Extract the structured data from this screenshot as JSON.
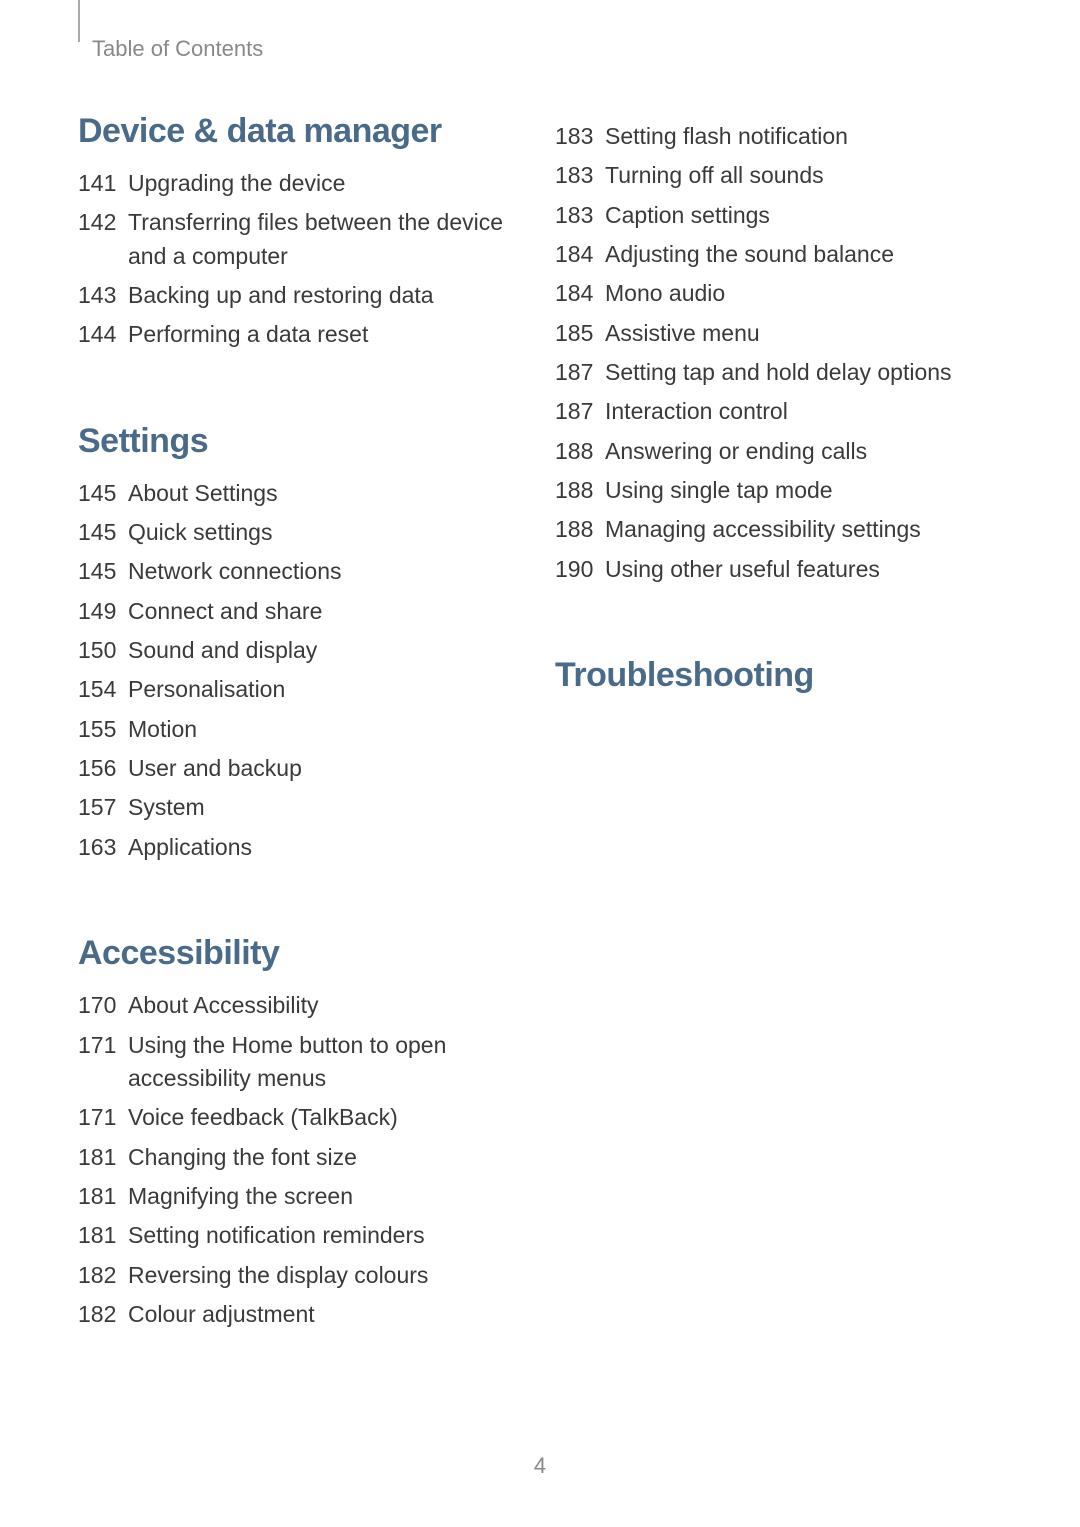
{
  "header": {
    "title": "Table of Contents"
  },
  "page_number": "4",
  "sections": {
    "device_data_manager": {
      "title": "Device & data manager",
      "entries": [
        {
          "page": "141",
          "text": "Upgrading the device"
        },
        {
          "page": "142",
          "text": "Transferring files between the device and a computer"
        },
        {
          "page": "143",
          "text": "Backing up and restoring data"
        },
        {
          "page": "144",
          "text": "Performing a data reset"
        }
      ]
    },
    "settings": {
      "title": "Settings",
      "entries": [
        {
          "page": "145",
          "text": "About Settings"
        },
        {
          "page": "145",
          "text": "Quick settings"
        },
        {
          "page": "145",
          "text": "Network connections"
        },
        {
          "page": "149",
          "text": "Connect and share"
        },
        {
          "page": "150",
          "text": "Sound and display"
        },
        {
          "page": "154",
          "text": "Personalisation"
        },
        {
          "page": "155",
          "text": "Motion"
        },
        {
          "page": "156",
          "text": "User and backup"
        },
        {
          "page": "157",
          "text": "System"
        },
        {
          "page": "163",
          "text": "Applications"
        }
      ]
    },
    "accessibility": {
      "title": "Accessibility",
      "entries": [
        {
          "page": "170",
          "text": "About Accessibility"
        },
        {
          "page": "171",
          "text": "Using the Home button to open accessibility menus"
        },
        {
          "page": "171",
          "text": "Voice feedback (TalkBack)"
        },
        {
          "page": "181",
          "text": "Changing the font size"
        },
        {
          "page": "181",
          "text": "Magnifying the screen"
        },
        {
          "page": "181",
          "text": "Setting notification reminders"
        },
        {
          "page": "182",
          "text": "Reversing the display colours"
        },
        {
          "page": "182",
          "text": "Colour adjustment"
        }
      ]
    },
    "accessibility_cont": {
      "entries": [
        {
          "page": "183",
          "text": "Setting flash notification"
        },
        {
          "page": "183",
          "text": "Turning off all sounds"
        },
        {
          "page": "183",
          "text": "Caption settings"
        },
        {
          "page": "184",
          "text": "Adjusting the sound balance"
        },
        {
          "page": "184",
          "text": "Mono audio"
        },
        {
          "page": "185",
          "text": "Assistive menu"
        },
        {
          "page": "187",
          "text": "Setting tap and hold delay options"
        },
        {
          "page": "187",
          "text": "Interaction control"
        },
        {
          "page": "188",
          "text": "Answering or ending calls"
        },
        {
          "page": "188",
          "text": "Using single tap mode"
        },
        {
          "page": "188",
          "text": "Managing accessibility settings"
        },
        {
          "page": "190",
          "text": "Using other useful features"
        }
      ]
    },
    "troubleshooting": {
      "title": "Troubleshooting"
    }
  }
}
